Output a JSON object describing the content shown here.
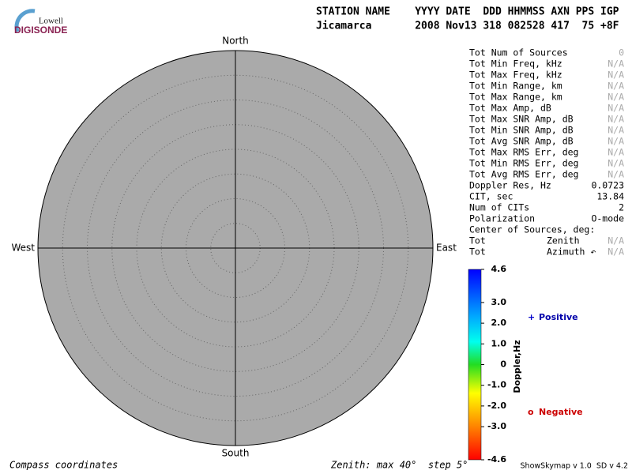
{
  "logo": {
    "top": "Lowell",
    "bottom": "DIGISONDE"
  },
  "header": {
    "columns": "STATION NAME    YYYY DATE  DDD HHMMSS AXN PPS IGP",
    "values": "Jicamarca       2008 Nov13 318 082528 417  75 +8F"
  },
  "stats": [
    [
      "Tot Num of Sources",
      "0"
    ],
    [
      "Tot Min Freq, kHz",
      "N/A"
    ],
    [
      "Tot Max Freq, kHz",
      "N/A"
    ],
    [
      "Tot Min Range, km",
      "N/A"
    ],
    [
      "Tot Max Range, km",
      "N/A"
    ],
    [
      "Tot Max Amp, dB",
      "N/A"
    ],
    [
      "Tot Max SNR Amp, dB",
      "N/A"
    ],
    [
      "Tot Min SNR Amp, dB",
      "N/A"
    ],
    [
      "Tot Avg SNR Amp, dB",
      "N/A"
    ],
    [
      "Tot Max RMS Err, deg",
      "N/A"
    ],
    [
      "Tot Min RMS Err, deg",
      "N/A"
    ],
    [
      "Tot Avg RMS Err, deg",
      "N/A"
    ],
    [
      "Doppler Res, Hz",
      "0.0723"
    ],
    [
      "CIT, sec",
      "13.84"
    ],
    [
      "Num of CITs",
      "2"
    ],
    [
      "Polarization",
      "O-mode"
    ],
    [
      "Center of Sources, deg:"
    ],
    [
      "Tot",
      "Zenith",
      "N/A"
    ],
    [
      "Tot",
      "Azimuth ↶",
      "N/A"
    ]
  ],
  "compass": {
    "north": "North",
    "south": "South",
    "east": "East",
    "west": "West"
  },
  "colorbar": {
    "title": "Doppler,Hz",
    "ticks": [
      4.6,
      {
        "value": 3,
        "label": "3.0"
      },
      {
        "value": 2,
        "label": "2.0"
      },
      {
        "value": 1,
        "label": "1.0"
      },
      0,
      {
        "value": -1,
        "label": "-1.0"
      },
      {
        "value": -2,
        "label": "-2.0"
      },
      {
        "value": -3,
        "label": "-3.0"
      },
      -4.6
    ]
  },
  "legend": {
    "positive_symbol": "+",
    "positive": "Positive",
    "negative_symbol": "o",
    "negative": "Negative"
  },
  "footer": {
    "left": "Compass coordinates",
    "center": "Zenith: max 40°  step 5°",
    "right": "ShowSkymap v 1.0  SD v 4.2"
  }
}
